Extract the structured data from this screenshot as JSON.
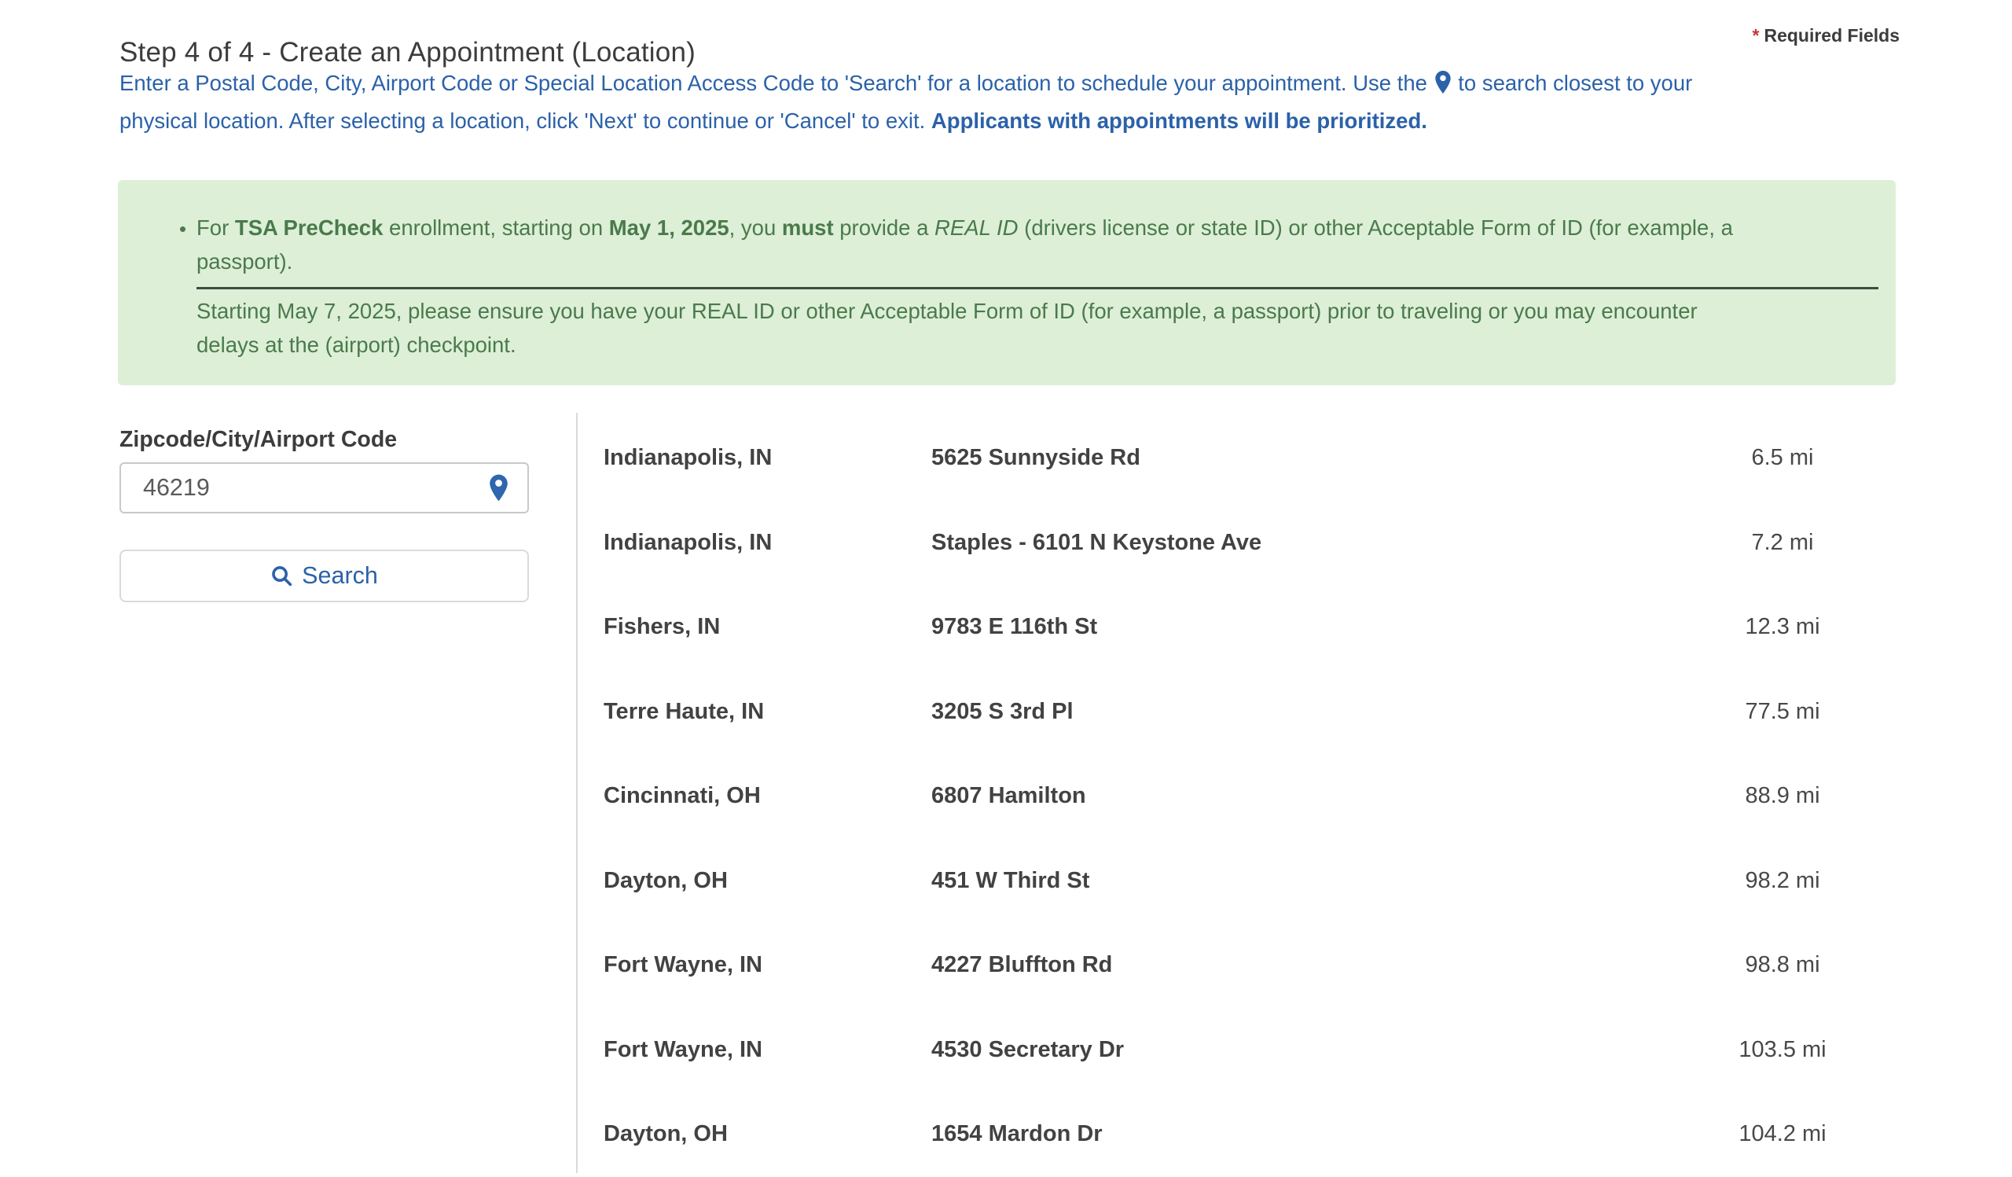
{
  "header": {
    "title": "Step 4 of 4 - Create an Appointment (Location)",
    "required_asterisk": "*",
    "required_label": "Required Fields"
  },
  "intro": {
    "segments": [
      {
        "t": "Enter a Postal Code, City, Airport Code or Special Location Access Code to 'Search' for a location to schedule your appointment. Use the "
      },
      {
        "icon": "location-pin"
      },
      {
        "t": " to search closest to your"
      },
      {
        "br": true
      },
      {
        "t": "physical location. After selecting a location, click 'Next' to continue or 'Cancel' to exit. "
      },
      {
        "t": "Applicants with appointments will be prioritized.",
        "b": true
      }
    ]
  },
  "alert": {
    "bullet_segments": [
      {
        "t": "For "
      },
      {
        "t": "TSA PreCheck",
        "b": true
      },
      {
        "t": " enrollment, starting on "
      },
      {
        "t": "May 1, 2025",
        "b": true
      },
      {
        "t": ", you "
      },
      {
        "t": "must",
        "b": true
      },
      {
        "t": " provide a "
      },
      {
        "t": "REAL ID",
        "i": true
      },
      {
        "t": " (drivers license or state ID) or other Acceptable Form of ID (for example, a"
      },
      {
        "br": true
      },
      {
        "t": "passport)."
      }
    ],
    "after_segments": [
      {
        "t": "Starting May 7, 2025, please ensure you have your REAL ID or other Acceptable Form of ID (for example, a passport) prior to traveling or you may encounter"
      },
      {
        "br": true
      },
      {
        "t": "delays at the (airport) checkpoint."
      }
    ]
  },
  "search_panel": {
    "label": "Zipcode/City/Airport Code",
    "input_value": "46219",
    "search_label": "Search"
  },
  "locations": {
    "rows": [
      {
        "city": "Indianapolis, IN",
        "address": "5625 Sunnyside Rd",
        "distance": "6.5 mi"
      },
      {
        "city": "Indianapolis, IN",
        "address": "Staples - 6101 N Keystone Ave",
        "distance": "7.2 mi"
      },
      {
        "city": "Fishers, IN",
        "address": "9783 E 116th St",
        "distance": "12.3 mi"
      },
      {
        "city": "Terre Haute, IN",
        "address": "3205 S 3rd Pl",
        "distance": "77.5 mi"
      },
      {
        "city": "Cincinnati, OH",
        "address": "6807 Hamilton",
        "distance": "88.9 mi"
      },
      {
        "city": "Dayton, OH",
        "address": "451 W Third St",
        "distance": "98.2 mi"
      },
      {
        "city": "Fort Wayne, IN",
        "address": "4227 Bluffton Rd",
        "distance": "98.8 mi"
      },
      {
        "city": "Fort Wayne, IN",
        "address": "4530 Secretary Dr",
        "distance": "103.5 mi"
      },
      {
        "city": "Dayton, OH",
        "address": "1654 Mardon Dr",
        "distance": "104.2 mi"
      }
    ]
  },
  "colors": {
    "blue": "#2b61a9",
    "pin_blue": "#2f66ad",
    "dark": "#3c3c3c",
    "red": "#c23934",
    "green_bg": "#ddefd6",
    "green_text": "#4a7a4c",
    "hr_dark": "#3f4d3f",
    "row_text": "#424242",
    "row_text2": "#484848",
    "input_text": "#5a5a5a",
    "border_mid": "#c9c9c9",
    "border_light": "#dadada"
  }
}
